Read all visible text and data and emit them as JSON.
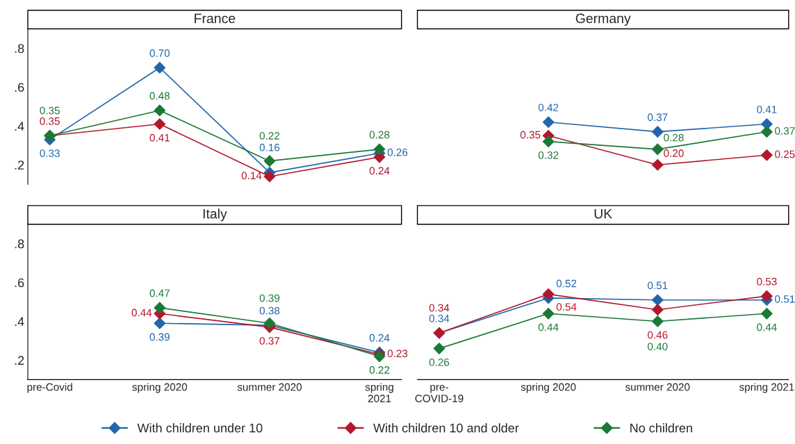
{
  "chart_data": [
    {
      "type": "line",
      "title": "France",
      "ylim": [
        0.1,
        0.9
      ],
      "yticks": [
        {
          "value": 0.2,
          "label": ".2"
        },
        {
          "value": 0.4,
          "label": ".4"
        },
        {
          "value": 0.6,
          "label": ".6"
        },
        {
          "value": 0.8,
          "label": ".8"
        }
      ],
      "tick_labels": "y",
      "marker": "diamond",
      "line_style": "solid",
      "legend": "bottom",
      "series": [
        {
          "name": "With children under 10",
          "color": "#2166ac",
          "values": [
            0.33,
            0.7,
            0.16,
            0.26
          ],
          "value_labels": [
            "0.33",
            "0.70",
            "0.16",
            "0.26"
          ]
        },
        {
          "name": "With children 10 and older",
          "color": "#b2182b",
          "values": [
            0.35,
            0.41,
            0.14,
            0.24
          ],
          "value_labels": [
            "0.35",
            "0.41",
            "0.14",
            "0.24"
          ]
        },
        {
          "name": "No children",
          "color": "#1b7837",
          "values": [
            0.35,
            0.48,
            0.22,
            0.28
          ],
          "value_labels": [
            "0.35",
            "0.48",
            "0.22",
            "0.28"
          ]
        }
      ]
    },
    {
      "type": "line",
      "title": "Germany",
      "tick_labels": false,
      "marker": "diamond",
      "line_style": "solid",
      "series": [
        {
          "color": "#2166ac",
          "values": [
            null,
            0.42,
            0.37,
            0.41
          ],
          "value_labels": [
            null,
            "0.42",
            "0.37",
            "0.41"
          ]
        },
        {
          "color": "#b2182b",
          "values": [
            null,
            0.35,
            0.2,
            0.25
          ],
          "value_labels": [
            null,
            "0.35",
            "0.20",
            "0.25"
          ]
        },
        {
          "color": "#1b7837",
          "values": [
            null,
            0.32,
            0.28,
            0.37
          ],
          "value_labels": [
            null,
            "0.32",
            "0.28",
            "0.37"
          ]
        }
      ]
    },
    {
      "type": "line",
      "title": "Italy",
      "categories": [
        "pre-Covid",
        "spring 2020",
        "summer 2020",
        "spring\n2021"
      ],
      "ylim": [
        0.1,
        0.9
      ],
      "yticks": [
        {
          "value": 0.2,
          "label": ".2"
        },
        {
          "value": 0.4,
          "label": ".4"
        },
        {
          "value": 0.6,
          "label": ".6"
        },
        {
          "value": 0.8,
          "label": ".8"
        }
      ],
      "marker": "diamond",
      "line_style": "solid",
      "series": [
        {
          "color": "#2166ac",
          "values": [
            null,
            0.39,
            0.38,
            0.24
          ],
          "value_labels": [
            null,
            "0.39",
            "0.38",
            "0.24"
          ]
        },
        {
          "color": "#b2182b",
          "values": [
            null,
            0.44,
            0.37,
            0.23
          ],
          "value_labels": [
            null,
            "0.44",
            "0.37",
            "0.23"
          ]
        },
        {
          "color": "#1b7837",
          "values": [
            null,
            0.47,
            0.39,
            0.22
          ],
          "value_labels": [
            null,
            "0.47",
            "0.39",
            "0.22"
          ]
        }
      ]
    },
    {
      "type": "line",
      "title": "UK",
      "categories": [
        "pre-\nCOVID-19",
        "spring 2020",
        "summer 2020",
        "spring 2021"
      ],
      "tick_labels": "x",
      "marker": "diamond",
      "line_style": "solid",
      "series": [
        {
          "color": "#2166ac",
          "values": [
            0.34,
            0.52,
            0.51,
            0.51
          ],
          "value_labels": [
            "0.34",
            "0.52",
            "0.51",
            "0.51"
          ]
        },
        {
          "color": "#b2182b",
          "values": [
            0.34,
            0.54,
            0.46,
            0.53
          ],
          "value_labels": [
            "0.34",
            "0.54",
            "0.46",
            "0.53"
          ]
        },
        {
          "color": "#1b7837",
          "values": [
            0.26,
            0.44,
            0.4,
            0.44
          ],
          "value_labels": [
            "0.26",
            "0.44",
            "0.40",
            "0.44"
          ]
        }
      ]
    }
  ]
}
